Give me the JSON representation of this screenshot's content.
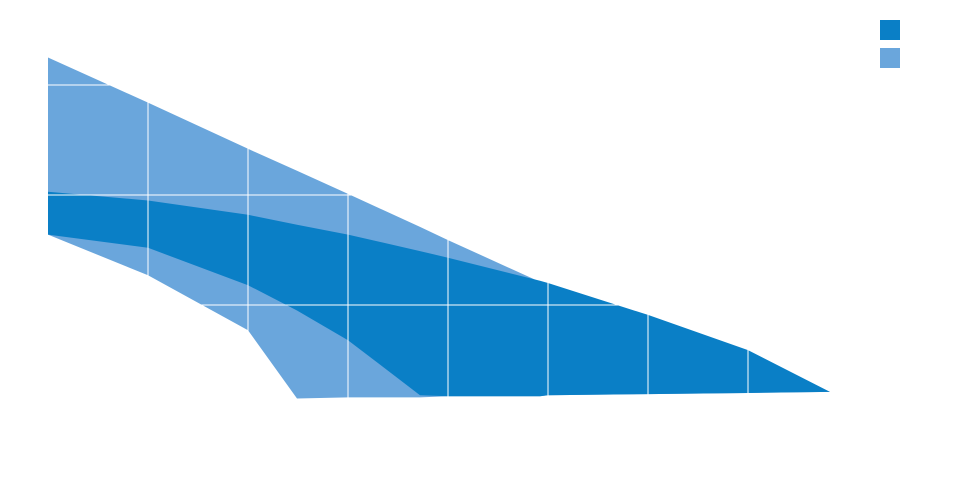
{
  "chart_data": {
    "type": "area",
    "x": [
      0,
      1,
      2,
      2.49,
      3,
      3.72,
      4,
      4.92,
      5,
      6,
      7,
      7.82
    ],
    "series": [
      {
        "color": "#0a7fc6",
        "values": [
          2.03,
          1.95,
          1.82,
          1.73,
          1.64,
          1.49,
          1.43,
          1.22,
          1.2,
          0.91,
          0.59,
          0.21
        ],
        "lower": [
          1.64,
          1.52,
          1.18,
          0.95,
          0.68,
          0.18,
          0.17,
          0.17,
          0.18,
          0.19,
          0.2,
          0.21
        ]
      },
      {
        "color": "#6aa6dc",
        "values": [
          3.25,
          2.84,
          2.42,
          2.22,
          2.01,
          1.71,
          1.59,
          1.21,
          1.18,
          0.84,
          0.49,
          0.21
        ],
        "lower": [
          1.64,
          1.27,
          0.77,
          0.15,
          0.16,
          0.16,
          0.17,
          0.17,
          0.18,
          0.19,
          0.2,
          0.21
        ]
      }
    ],
    "xlim": [
      0,
      8
    ],
    "ylim": [
      0,
      3.6
    ],
    "xticks": [
      1,
      2,
      3,
      4,
      5,
      6,
      7
    ],
    "yticks": [
      1,
      2,
      3
    ],
    "grid": true,
    "legend": "top-right"
  }
}
